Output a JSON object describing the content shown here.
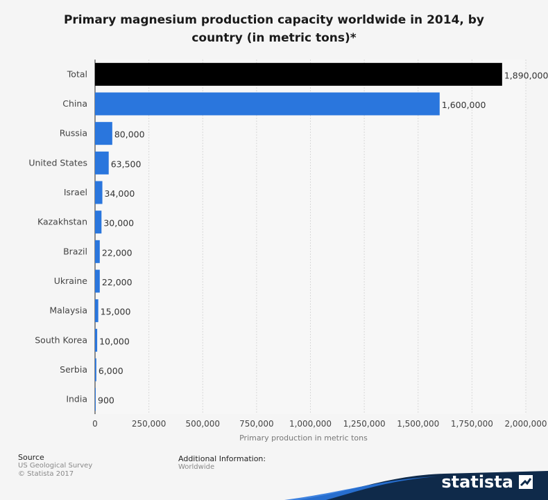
{
  "title": "Primary magnesium production capacity worldwide in 2014, by country (in metric tons)*",
  "chart_data": {
    "type": "bar",
    "orientation": "horizontal",
    "categories": [
      "Total",
      "China",
      "Russia",
      "United States",
      "Israel",
      "Kazakhstan",
      "Brazil",
      "Ukraine",
      "Malaysia",
      "South Korea",
      "Serbia",
      "India"
    ],
    "values": [
      1890000,
      1600000,
      80000,
      63500,
      34000,
      30000,
      22000,
      22000,
      15000,
      10000,
      6000,
      900
    ],
    "value_labels": [
      "1,890,000",
      "1,600,000",
      "80,000",
      "63,500",
      "34,000",
      "30,000",
      "22,000",
      "22,000",
      "15,000",
      "10,000",
      "6,000",
      "900"
    ],
    "bar_colors": [
      "#000000",
      "#2a76dd",
      "#2a76dd",
      "#2a76dd",
      "#2a76dd",
      "#2a76dd",
      "#2a76dd",
      "#2a76dd",
      "#2a76dd",
      "#2a76dd",
      "#2a76dd",
      "#2a76dd"
    ],
    "xlabel": "Primary production in metric tons",
    "xlim": [
      0,
      2000000
    ],
    "xticks": [
      0,
      250000,
      500000,
      750000,
      1000000,
      1250000,
      1500000,
      1750000,
      2000000
    ],
    "xtick_labels": [
      "0",
      "250,000",
      "500,000",
      "750,000",
      "1,000,000",
      "1,250,000",
      "1,500,000",
      "1,750,000",
      "2,000,000"
    ],
    "grid": true
  },
  "footer": {
    "source_heading": "Source",
    "source_line1": "US Geological Survey",
    "source_line2": "© Statista 2017",
    "info_heading": "Additional Information:",
    "info_line1": "Worldwide"
  },
  "brand": "statista",
  "colors": {
    "brand_dark": "#0f2a4a",
    "brand_accent": "#2a76dd"
  }
}
